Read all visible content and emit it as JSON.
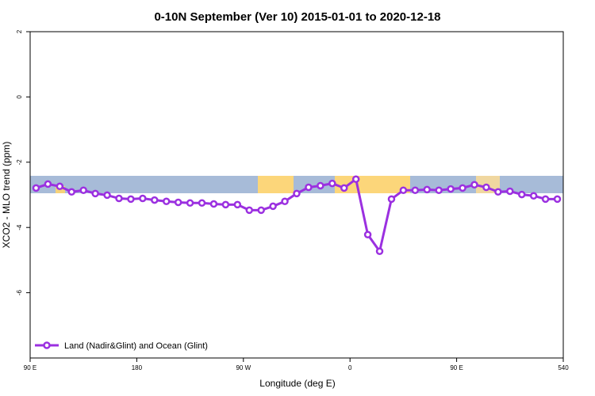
{
  "chart_data": {
    "type": "line",
    "title": "0-10N September (Ver 10)   2015-01-01 to 2020-12-18",
    "x_label": "Longitude (deg E)",
    "y_label": "XCO2 - MLO trend (ppm)",
    "xlim": [
      90,
      540
    ],
    "ylim": [
      -8,
      2
    ],
    "xticks": [
      {
        "value": 90,
        "label": "90 E"
      },
      180,
      {
        "value": 270,
        "label": "90 W"
      },
      {
        "value": 360,
        "label": "0"
      },
      {
        "value": 450,
        "label": "90 E"
      },
      540
    ],
    "yticks": [
      -6,
      -4,
      -2,
      0,
      2
    ],
    "legend": "bottom-left",
    "series": [
      {
        "name": "Land (Nadir&Glint) and Ocean (Glint)",
        "color": "#9b30e0",
        "x": [
          95,
          105,
          115,
          125,
          135,
          145,
          155,
          165,
          175,
          185,
          195,
          205,
          215,
          225,
          235,
          245,
          255,
          265,
          275,
          285,
          295,
          305,
          315,
          325,
          335,
          345,
          355,
          365,
          375,
          385,
          395,
          405,
          415,
          425,
          435,
          445,
          455,
          465,
          475,
          485,
          495,
          505,
          515,
          525,
          535
        ],
        "values": [
          -2.79,
          -2.67,
          -2.74,
          -2.91,
          -2.86,
          -2.96,
          -3.01,
          -3.11,
          -3.13,
          -3.11,
          -3.16,
          -3.2,
          -3.23,
          -3.25,
          -3.25,
          -3.28,
          -3.3,
          -3.3,
          -3.47,
          -3.47,
          -3.35,
          -3.2,
          -2.96,
          -2.77,
          -2.72,
          -2.65,
          -2.79,
          -2.52,
          -4.22,
          -4.73,
          -3.13,
          -2.86,
          -2.86,
          -2.84,
          -2.86,
          -2.82,
          -2.79,
          -2.69,
          -2.77,
          -2.91,
          -2.89,
          -2.99,
          -3.03,
          -3.13,
          -3.13
        ]
      }
    ]
  }
}
